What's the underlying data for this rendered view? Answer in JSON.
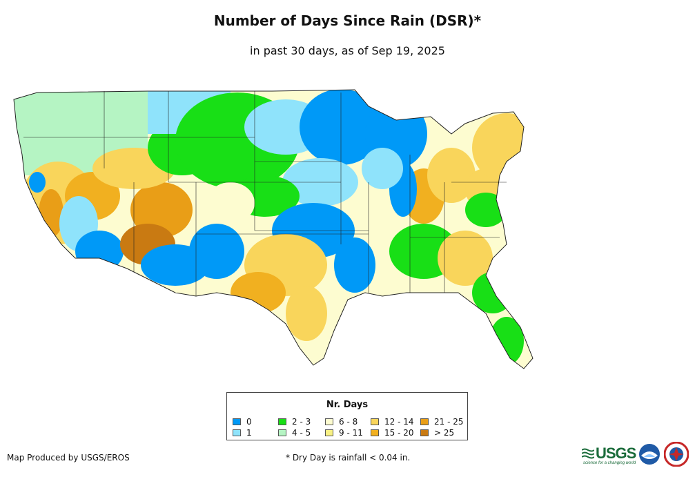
{
  "header": {
    "title": "Number of Days Since Rain (DSR)*",
    "subtitle": "in past 30 days, as of Sep 19, 2025"
  },
  "legend": {
    "title": "Nr. Days",
    "items": [
      {
        "label": "0",
        "color": "#0099f7"
      },
      {
        "label": "1",
        "color": "#8fe3fb"
      },
      {
        "label": "2 - 3",
        "color": "#18df16"
      },
      {
        "label": "4 - 5",
        "color": "#b5f4c3"
      },
      {
        "label": "6 - 8",
        "color": "#fdfcd0"
      },
      {
        "label": "9 - 11",
        "color": "#f8f184"
      },
      {
        "label": "12 - 14",
        "color": "#f9d55b"
      },
      {
        "label": "15 - 20",
        "color": "#f1b020"
      },
      {
        "label": "21 - 25",
        "color": "#e99e17"
      },
      {
        "label": "> 25",
        "color": "#c97a12"
      }
    ]
  },
  "footer": {
    "credit": "Map Produced by USGS/EROS",
    "footnote": "* Dry Day is rainfall < 0.04 in."
  },
  "logos": {
    "usgs": {
      "text": "USGS",
      "tagline": "science for a changing world",
      "icon": "usgs-wave-icon"
    },
    "noaa": {
      "icon": "noaa-seal-icon"
    },
    "nws": {
      "icon": "nws-seal-icon"
    }
  }
}
